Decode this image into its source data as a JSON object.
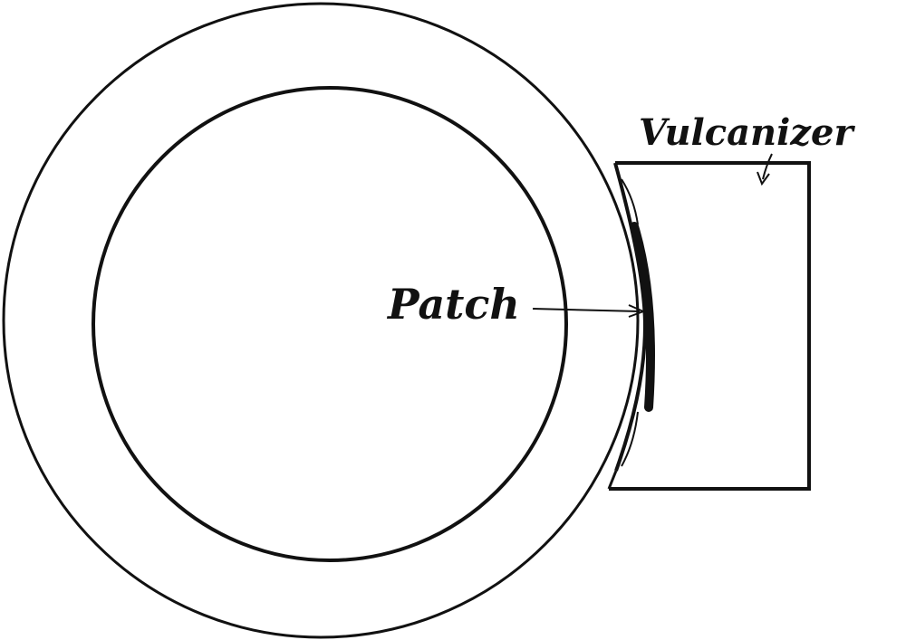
{
  "diagram": {
    "labels": {
      "patch": "Patch",
      "vulcanizer": "Vulcanizer"
    },
    "colors": {
      "ink": "#111111",
      "paper": "#ffffff"
    }
  }
}
